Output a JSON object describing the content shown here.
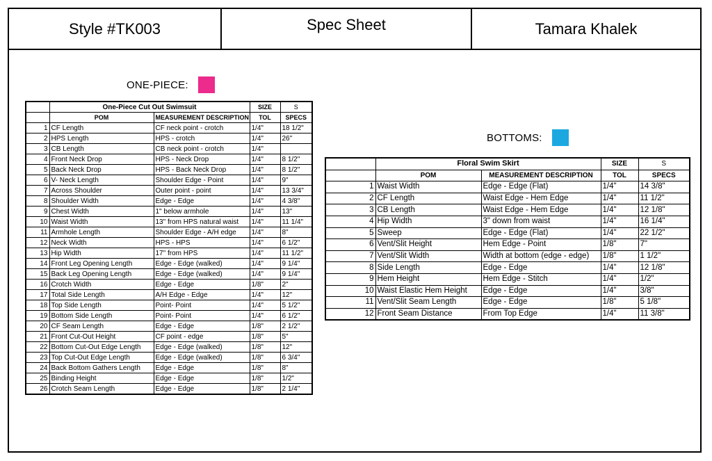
{
  "header": {
    "style": "Style #TK003",
    "sheet": "Spec Sheet",
    "designer": "Tamara Khalek"
  },
  "onepiece": {
    "label": "ONE-PIECE:",
    "color": "#ec2b8c",
    "title": "One-Piece Cut Out Swimsuit",
    "size_label": "SIZE",
    "size_value": "S",
    "col_pom": "POM",
    "col_desc": "MEASUREMENT DESCRIPTION",
    "col_tol": "TOL",
    "col_specs": "SPECS",
    "rows": [
      {
        "n": "1",
        "pom": "CF Length",
        "desc": "CF neck point - crotch",
        "tol": "1/4\"",
        "spec": "18 1/2\""
      },
      {
        "n": "2",
        "pom": "HPS Length",
        "desc": "HPS - crotch",
        "tol": "1/4\"",
        "spec": "26\""
      },
      {
        "n": "3",
        "pom": "CB Length",
        "desc": "CB neck point - crotch",
        "tol": "1/4\"",
        "spec": ""
      },
      {
        "n": "4",
        "pom": "Front Neck Drop",
        "desc": "HPS - Neck Drop",
        "tol": "1/4\"",
        "spec": "8 1/2\""
      },
      {
        "n": "5",
        "pom": "Back Neck Drop",
        "desc": "HPS - Back Neck Drop",
        "tol": "1/4\"",
        "spec": "8 1/2\""
      },
      {
        "n": "6",
        "pom": "V- Neck Length",
        "desc": "Shoulder Edge - Point",
        "tol": "1/4\"",
        "spec": "9\""
      },
      {
        "n": "7",
        "pom": "Across Shoulder",
        "desc": "Outer point - point",
        "tol": "1/4\"",
        "spec": "13 3/4\""
      },
      {
        "n": "8",
        "pom": "Shoulder Width",
        "desc": "Edge - Edge",
        "tol": "1/4\"",
        "spec": "4 3/8\""
      },
      {
        "n": "9",
        "pom": "Chest Width",
        "desc": "1\" below armhole",
        "tol": "1/4\"",
        "spec": "13\""
      },
      {
        "n": "10",
        "pom": "Waist Width",
        "desc": "13\" from HPS natural waist",
        "tol": "1/4\"",
        "spec": "11 1/4\""
      },
      {
        "n": "11",
        "pom": "Armhole Length",
        "desc": "Shoulder Edge - A/H edge",
        "tol": "1/4\"",
        "spec": "8\""
      },
      {
        "n": "12",
        "pom": "Neck Width",
        "desc": "HPS - HPS",
        "tol": "1/4\"",
        "spec": "6 1/2\""
      },
      {
        "n": "13",
        "pom": "Hip Width",
        "desc": "17\" from HPS",
        "tol": "1/4\"",
        "spec": "11 1/2\""
      },
      {
        "n": "14",
        "pom": "Front Leg Opening Length",
        "desc": "Edge - Edge (walked)",
        "tol": "1/4\"",
        "spec": "9 1/4\""
      },
      {
        "n": "15",
        "pom": "Back Leg Opening Length",
        "desc": "Edge - Edge (walked)",
        "tol": "1/4\"",
        "spec": "9 1/4\""
      },
      {
        "n": "16",
        "pom": "Crotch Width",
        "desc": "Edge - Edge",
        "tol": "1/8\"",
        "spec": "2\""
      },
      {
        "n": "17",
        "pom": "Total Side Length",
        "desc": "A/H Edge - Edge",
        "tol": "1/4\"",
        "spec": "12\""
      },
      {
        "n": "18",
        "pom": "Top Side Length",
        "desc": "Point- Point",
        "tol": "1/4\"",
        "spec": "5 1/2\""
      },
      {
        "n": "19",
        "pom": "Bottom Side Length",
        "desc": "Point- Point",
        "tol": "1/4\"",
        "spec": "6 1/2\""
      },
      {
        "n": "20",
        "pom": "CF Seam Length",
        "desc": "Edge - Edge",
        "tol": "1/8\"",
        "spec": "2 1/2\""
      },
      {
        "n": "21",
        "pom": "Front Cut-Out Height",
        "desc": "CF point - edge",
        "tol": "1/8\"",
        "spec": "5\""
      },
      {
        "n": "22",
        "pom": "Bottom Cut-Out Edge Length",
        "desc": "Edge - Edge (walked)",
        "tol": "1/8\"",
        "spec": "12\""
      },
      {
        "n": "23",
        "pom": "Top Cut-Out Edge Length",
        "desc": "Edge - Edge (walked)",
        "tol": "1/8\"",
        "spec": "6 3/4\""
      },
      {
        "n": "24",
        "pom": "Back Bottom Gathers Length",
        "desc": "Edge - Edge",
        "tol": "1/8\"",
        "spec": "8\""
      },
      {
        "n": "25",
        "pom": "Binding Height",
        "desc": "Edge - Edge",
        "tol": "1/8\"",
        "spec": "1/2\""
      },
      {
        "n": "26",
        "pom": "Crotch Seam Length",
        "desc": "Edge - Edge",
        "tol": "1/8\"",
        "spec": "2 1/4\""
      }
    ]
  },
  "bottoms": {
    "label": "BOTTOMS:",
    "color": "#1ba8e0",
    "title": "Floral Swim Skirt",
    "size_label": "SIZE",
    "size_value": "S",
    "col_pom": "POM",
    "col_desc": "MEASUREMENT DESCRIPTION",
    "col_tol": "TOL",
    "col_specs": "SPECS",
    "rows": [
      {
        "n": "1",
        "pom": "Waist Width",
        "desc": "Edge - Edge (Flat)",
        "tol": "1/4\"",
        "spec": "14 3/8\""
      },
      {
        "n": "2",
        "pom": "CF Length",
        "desc": "Waist Edge - Hem Edge",
        "tol": "1/4\"",
        "spec": "11 1/2\""
      },
      {
        "n": "3",
        "pom": "CB Length",
        "desc": "Waist Edge - Hem Edge",
        "tol": "1/4\"",
        "spec": "12 1/8\""
      },
      {
        "n": "4",
        "pom": "Hip Width",
        "desc": "3\" down from waist",
        "tol": "1/4\"",
        "spec": "16 1/4\""
      },
      {
        "n": "5",
        "pom": "Sweep",
        "desc": "Edge - Edge (Flat)",
        "tol": "1/4\"",
        "spec": "22 1/2\""
      },
      {
        "n": "6",
        "pom": "Vent/Slit Height",
        "desc": "Hem Edge - Point",
        "tol": "1/8\"",
        "spec": "7\""
      },
      {
        "n": "7",
        "pom": "Vent/Slit Width",
        "desc": "Width at bottom (edge - edge)",
        "tol": "1/8\"",
        "spec": "1 1/2\""
      },
      {
        "n": "8",
        "pom": "Side Length",
        "desc": "Edge - Edge",
        "tol": "1/4\"",
        "spec": "12 1/8\""
      },
      {
        "n": "9",
        "pom": "Hem Height",
        "desc": "Hem Edge - Stitch",
        "tol": "1/4\"",
        "spec": "1/2\""
      },
      {
        "n": "10",
        "pom": "Waist Elastic Hem Height",
        "desc": "Edge - Edge",
        "tol": "1/4\"",
        "spec": "3/8\""
      },
      {
        "n": "11",
        "pom": "Vent/Slit Seam Length",
        "desc": "Edge - Edge",
        "tol": "1/8\"",
        "spec": "5 1/8\""
      },
      {
        "n": "12",
        "pom": "Front Seam Distance",
        "desc": "From Top Edge",
        "tol": "1/4\"",
        "spec": "11 3/8\""
      }
    ]
  }
}
